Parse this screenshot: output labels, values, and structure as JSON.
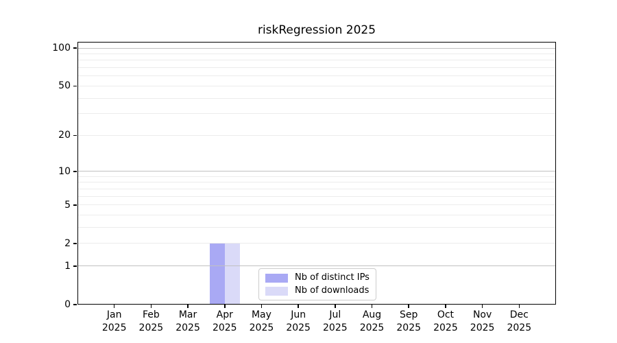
{
  "chart_data": {
    "type": "bar",
    "title": "riskRegression 2025",
    "categories": [
      "Jan",
      "Feb",
      "Mar",
      "Apr",
      "May",
      "Jun",
      "Jul",
      "Aug",
      "Sep",
      "Oct",
      "Nov",
      "Dec"
    ],
    "year_label": "2025",
    "series": [
      {
        "name": "Nb of distinct IPs",
        "color": "#a9a9f4",
        "values": [
          0,
          0,
          0,
          2,
          0,
          0,
          0,
          0,
          0,
          0,
          0,
          0
        ]
      },
      {
        "name": "Nb of downloads",
        "color": "#dadaf8",
        "values": [
          0,
          0,
          0,
          2,
          0,
          0,
          0,
          0,
          0,
          0,
          0,
          0
        ]
      }
    ],
    "yaxis": {
      "scale": "log10(1+x)",
      "ticks": [
        0,
        1,
        2,
        5,
        10,
        20,
        50,
        100
      ],
      "max": 112,
      "major_gridlines": [
        1,
        10,
        100
      ],
      "minor_gridlines": [
        2,
        3,
        4,
        5,
        6,
        7,
        8,
        9,
        20,
        30,
        40,
        50,
        60,
        70,
        80,
        90
      ]
    },
    "xlabel": "",
    "ylabel": "",
    "grid": "horizontal-only",
    "legend_position": "lower center"
  },
  "colors": {
    "axis": "#000000",
    "major_grid": "#c0c0c0",
    "minor_grid": "#ececec",
    "background": "#ffffff",
    "legend_border": "#cccccc"
  }
}
